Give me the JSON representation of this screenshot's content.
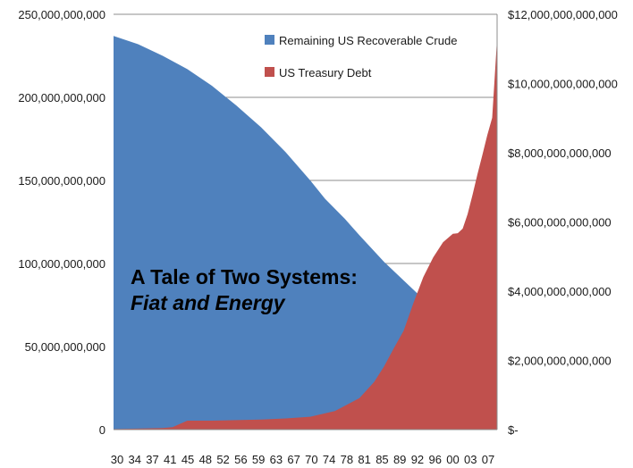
{
  "chart_data": {
    "type": "area",
    "title": "A Tale of Two Systems:",
    "subtitle": "Fiat and Energy",
    "x_tick_labels": [
      "30",
      "34",
      "37",
      "41",
      "45",
      "48",
      "52",
      "56",
      "59",
      "63",
      "67",
      "70",
      "74",
      "78",
      "81",
      "85",
      "89",
      "92",
      "96",
      "00",
      "03",
      "07"
    ],
    "x_range": [
      1930,
      2008
    ],
    "y_left": {
      "ticks": [
        "0",
        "50,000,000,000",
        "100,000,000,000",
        "150,000,000,000",
        "200,000,000,000",
        "250,000,000,000"
      ],
      "range": [
        0,
        250000000000
      ]
    },
    "y_right": {
      "ticks": [
        "$-",
        "$2,000,000,000,000",
        "$4,000,000,000,000",
        "$6,000,000,000,000",
        "$8,000,000,000,000",
        "$10,000,000,000,000",
        "$12,000,000,000,000"
      ],
      "range": [
        0,
        12000000000000
      ]
    },
    "gridlines": true,
    "legend_position": "top-right",
    "series": [
      {
        "name": "Remaining US Recoverable Crude",
        "axis": "left",
        "color": "#4f81bd",
        "points": [
          [
            1930,
            237000000000
          ],
          [
            1935,
            232000000000
          ],
          [
            1940,
            225000000000
          ],
          [
            1945,
            217000000000
          ],
          [
            1950,
            207000000000
          ],
          [
            1955,
            195000000000
          ],
          [
            1960,
            182000000000
          ],
          [
            1965,
            167000000000
          ],
          [
            1970,
            150000000000
          ],
          [
            1973,
            139000000000
          ],
          [
            1977,
            127000000000
          ],
          [
            1980,
            117000000000
          ],
          [
            1985,
            101000000000
          ],
          [
            1990,
            87000000000
          ],
          [
            1995,
            73000000000
          ],
          [
            2000,
            58000000000
          ],
          [
            2005,
            43000000000
          ],
          [
            2008,
            35000000000
          ]
        ]
      },
      {
        "name": "US Treasury Debt",
        "axis": "right",
        "color": "#c0504d",
        "points": [
          [
            1930,
            16000000000
          ],
          [
            1935,
            29000000000
          ],
          [
            1940,
            43000000000
          ],
          [
            1942,
            72000000000
          ],
          [
            1945,
            259000000000
          ],
          [
            1950,
            257000000000
          ],
          [
            1955,
            274000000000
          ],
          [
            1960,
            290000000000
          ],
          [
            1965,
            322000000000
          ],
          [
            1970,
            371000000000
          ],
          [
            1975,
            533000000000
          ],
          [
            1980,
            908000000000
          ],
          [
            1983,
            1377000000000
          ],
          [
            1985,
            1823000000000
          ],
          [
            1987,
            2350000000000
          ],
          [
            1989,
            2857000000000
          ],
          [
            1991,
            3665000000000
          ],
          [
            1993,
            4411000000000
          ],
          [
            1995,
            4974000000000
          ],
          [
            1997,
            5413000000000
          ],
          [
            1999,
            5656000000000
          ],
          [
            2000,
            5674000000000
          ],
          [
            2001,
            5807000000000
          ],
          [
            2002,
            6228000000000
          ],
          [
            2003,
            6783000000000
          ],
          [
            2004,
            7379000000000
          ],
          [
            2005,
            7933000000000
          ],
          [
            2006,
            8507000000000
          ],
          [
            2007,
            9008000000000
          ],
          [
            2008,
            11300000000000
          ]
        ]
      }
    ]
  }
}
